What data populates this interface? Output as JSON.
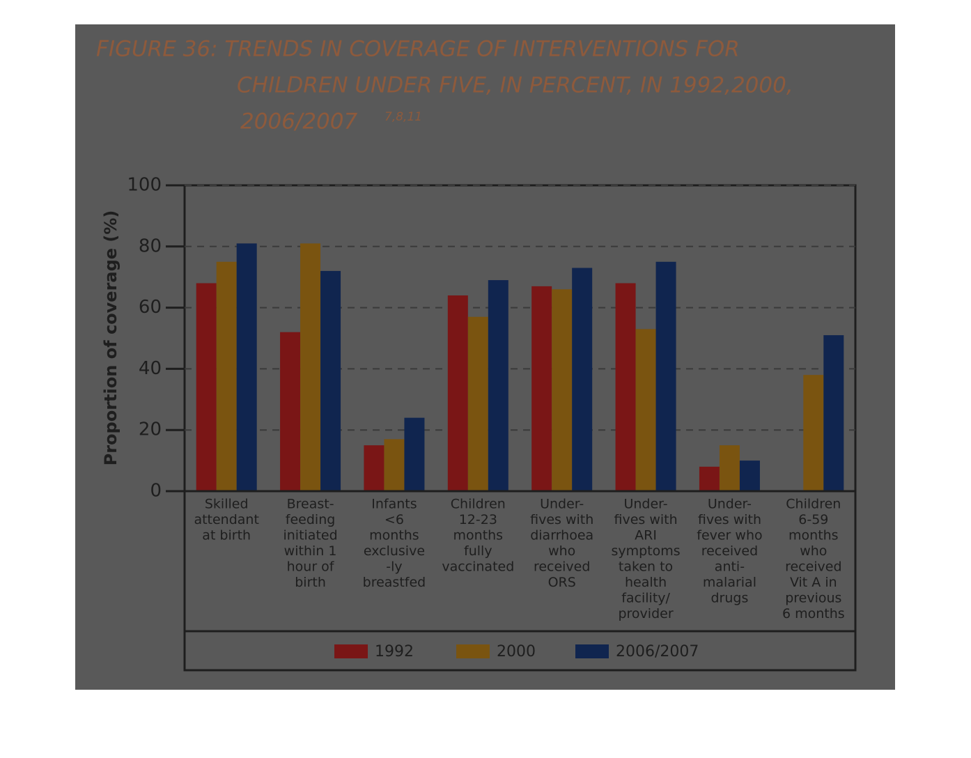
{
  "chart_data": {
    "type": "bar",
    "title": [
      "FIGURE 36: TRENDS IN COVERAGE OF INTERVENTIONS FOR",
      "CHILDREN UNDER FIVE, IN PERCENT, IN 1992,2000,",
      "2006/2007"
    ],
    "title_superscript": "7,8,11",
    "y_label": "Proportion of coverage (%)",
    "categories": [
      [
        "Skilled",
        "attendant",
        "at birth"
      ],
      [
        "Breast-",
        "feeding",
        "initiated",
        "within 1",
        "hour of",
        "birth"
      ],
      [
        "Infants",
        "<6",
        "months",
        "exclusive",
        "-ly",
        "breastfed"
      ],
      [
        "Children",
        "12-23",
        "months",
        "fully",
        "vaccinated"
      ],
      [
        "Under-",
        "fives with",
        "diarrhoea",
        "who",
        "received",
        "ORS"
      ],
      [
        "Under-",
        "fives with",
        "ARI",
        "symptoms",
        "taken to",
        "health",
        "facility/",
        "provider"
      ],
      [
        "Under-",
        "fives with",
        "fever who",
        "received",
        "anti-",
        "malarial",
        "drugs"
      ],
      [
        "Children",
        "6-59",
        "months",
        "who",
        "received",
        "Vit A in",
        "previous",
        "6 months"
      ]
    ],
    "series": [
      {
        "name": "1992",
        "color": "#7a1616",
        "values": [
          68,
          52,
          15,
          64,
          67,
          68,
          8,
          null
        ]
      },
      {
        "name": "2000",
        "color": "#7a5410",
        "values": [
          75,
          81,
          17,
          57,
          66,
          53,
          15,
          38
        ]
      },
      {
        "name": "2006/2007",
        "color": "#10254f",
        "values": [
          81,
          72,
          24,
          69,
          73,
          75,
          10,
          51
        ]
      }
    ],
    "ylim": [
      0,
      100
    ],
    "yticks": [
      0,
      20,
      40,
      60,
      80,
      100
    ],
    "grid": true,
    "legend": "bottom"
  }
}
